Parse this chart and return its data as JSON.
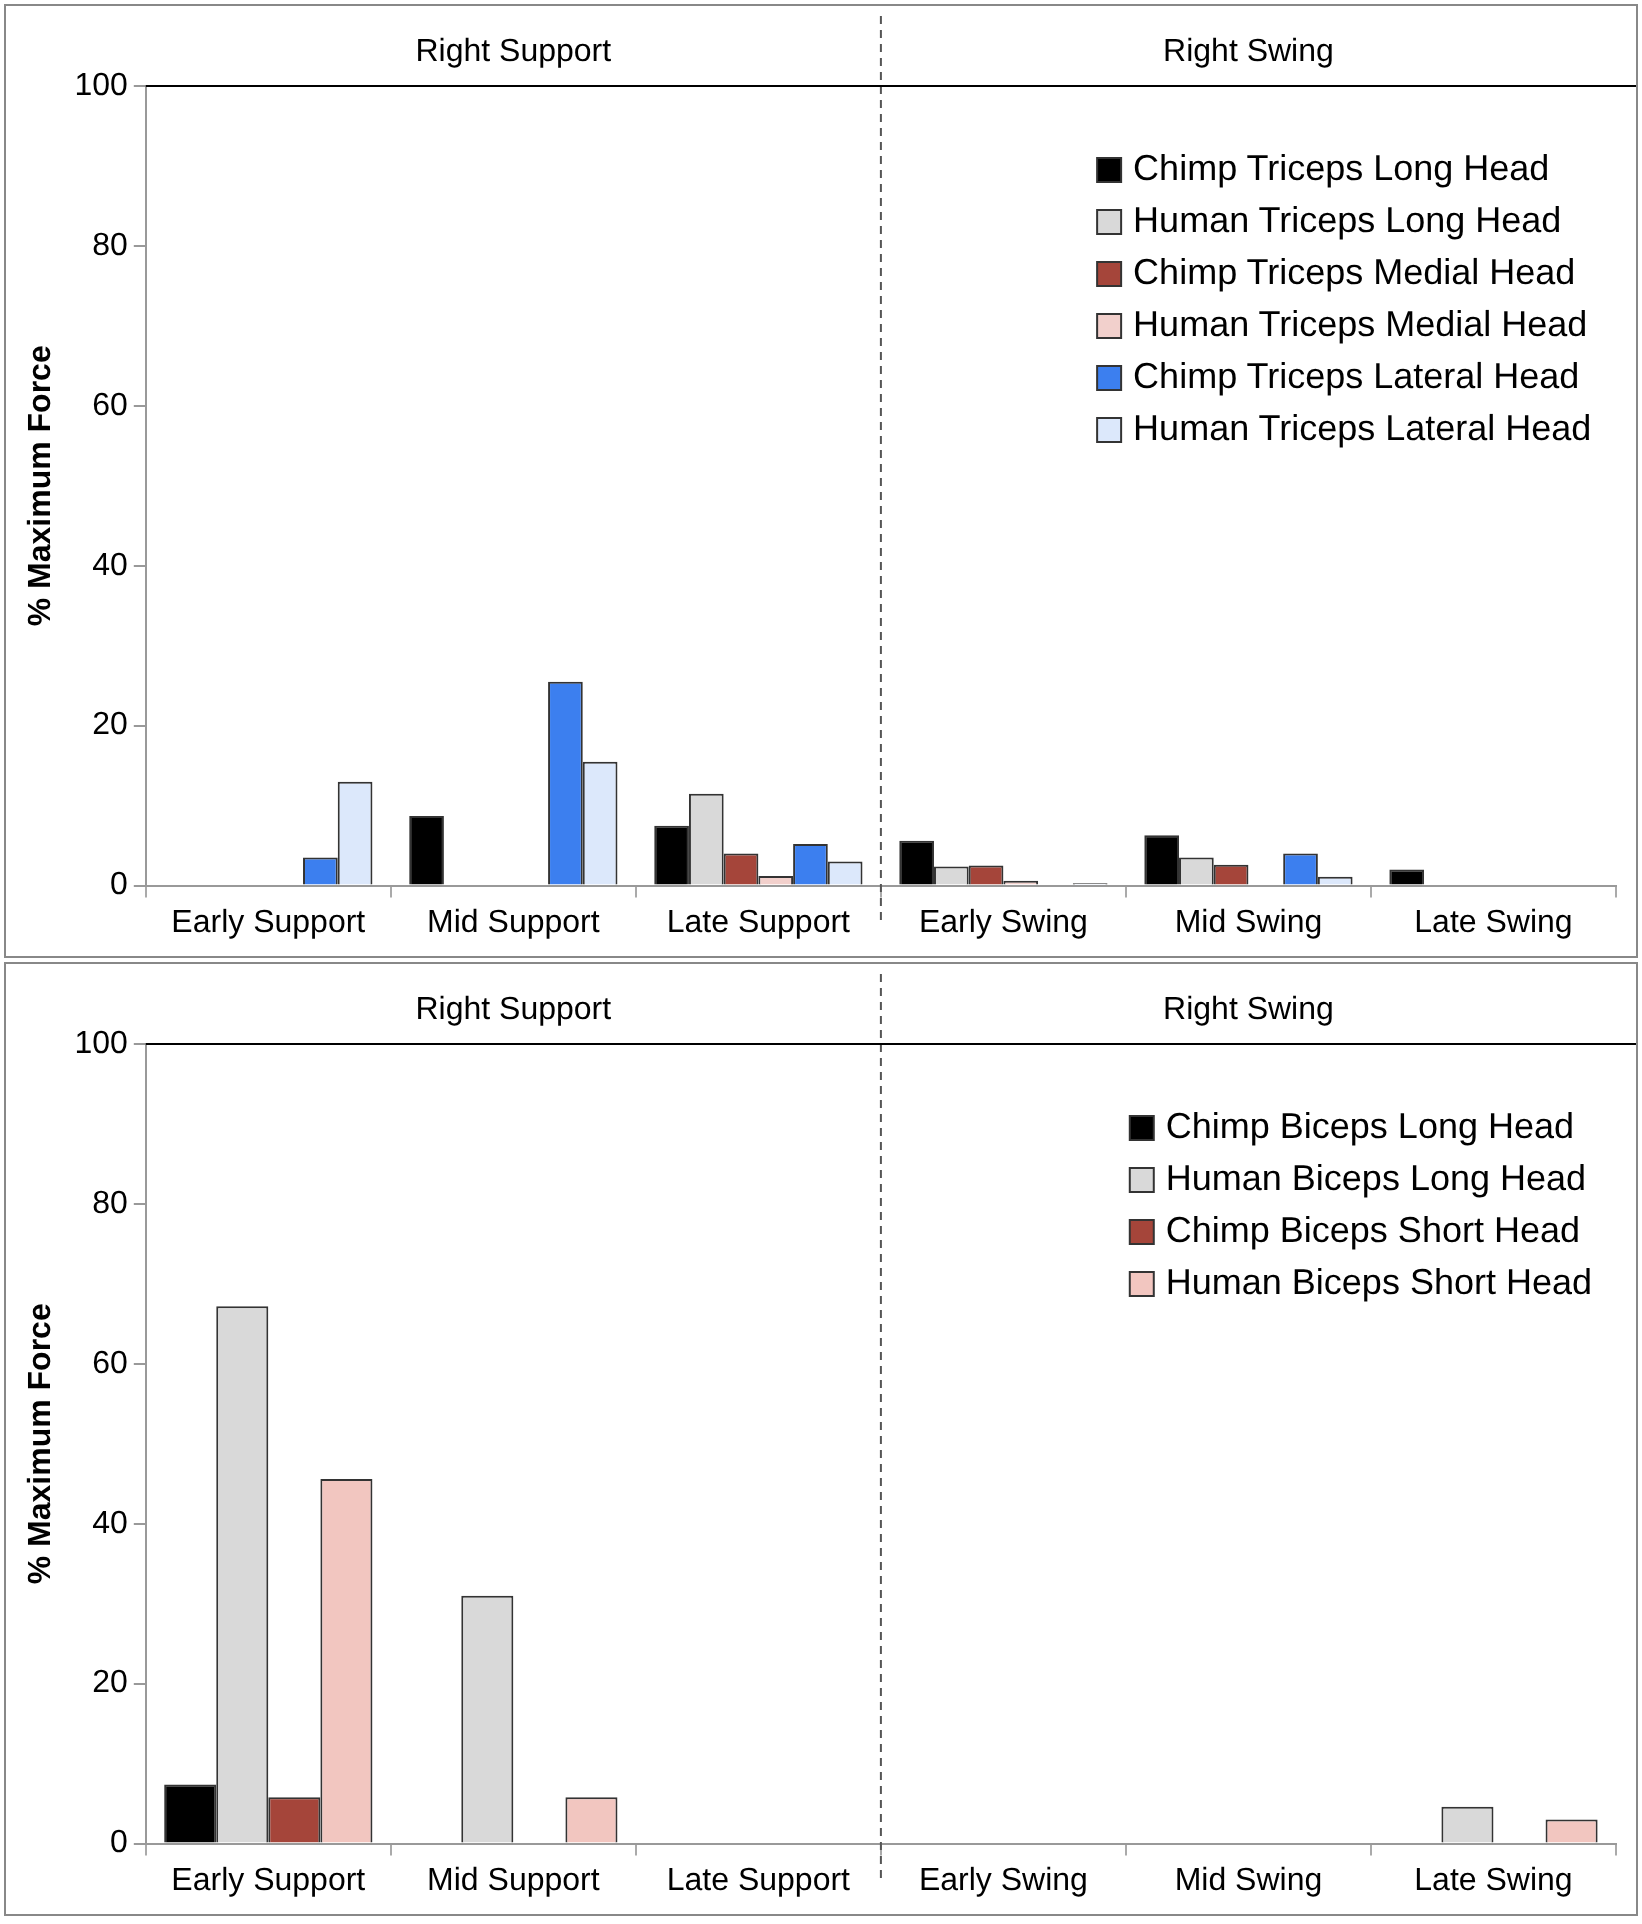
{
  "chart_data": [
    {
      "type": "bar",
      "ylabel": "% Maximum Force",
      "categories": [
        "Early Support",
        "Mid Support",
        "Late Support",
        "Early Swing",
        "Mid Swing",
        "Late Swing"
      ],
      "series": [
        {
          "name": "Chimp Triceps Long Head",
          "color": "#000000",
          "values": [
            0,
            8.7,
            7.5,
            5.6,
            6.3,
            2
          ]
        },
        {
          "name": "Human Triceps Long Head",
          "color": "#d9d9d9",
          "values": [
            0,
            0,
            11.5,
            2.4,
            3.5,
            0
          ]
        },
        {
          "name": "Chimp Triceps Medial Head",
          "color": "#a5453a",
          "values": [
            0,
            0,
            4,
            2.5,
            2.6,
            0
          ]
        },
        {
          "name": "Human Triceps Medial Head",
          "color": "#f2d0cc",
          "values": [
            0,
            0,
            1.2,
            0.6,
            0,
            0
          ]
        },
        {
          "name": "Chimp Triceps Lateral Head",
          "color": "#3c7fef",
          "values": [
            3.5,
            25.5,
            5.2,
            0,
            4,
            0
          ]
        },
        {
          "name": "Human Triceps Lateral Head",
          "color": "#dce8fb",
          "values": [
            13,
            15.5,
            3,
            0.3,
            1.1,
            0
          ]
        }
      ],
      "ylim": [
        0,
        100
      ],
      "yticks": [
        0,
        20,
        40,
        60,
        80,
        100
      ],
      "grid": false,
      "legend": "top right",
      "annotations": [
        "Right Support",
        "Right Swing"
      ]
    },
    {
      "type": "bar",
      "ylabel": "% Maximum Force",
      "categories": [
        "Early Support",
        "Mid Support",
        "Late Support",
        "Early Swing",
        "Mid Swing",
        "Late Swing"
      ],
      "series": [
        {
          "name": "Chimp Biceps Long Head",
          "color": "#000000",
          "values": [
            7.4,
            0,
            0,
            0,
            0,
            0
          ]
        },
        {
          "name": "Human Biceps Long Head",
          "color": "#d9d9d9",
          "values": [
            67.2,
            31,
            0,
            0,
            0,
            4.6
          ]
        },
        {
          "name": "Chimp Biceps Short Head",
          "color": "#a5453a",
          "values": [
            5.8,
            0,
            0,
            0,
            0,
            0
          ]
        },
        {
          "name": "Human Biceps Short Head",
          "color": "#f2c6c0",
          "values": [
            45.6,
            5.8,
            0,
            0,
            0,
            3
          ]
        }
      ],
      "ylim": [
        0,
        100
      ],
      "yticks": [
        0,
        20,
        40,
        60,
        80,
        100
      ],
      "grid": false,
      "legend": "top right",
      "annotations": [
        "Right Support",
        "Right Swing"
      ]
    }
  ]
}
